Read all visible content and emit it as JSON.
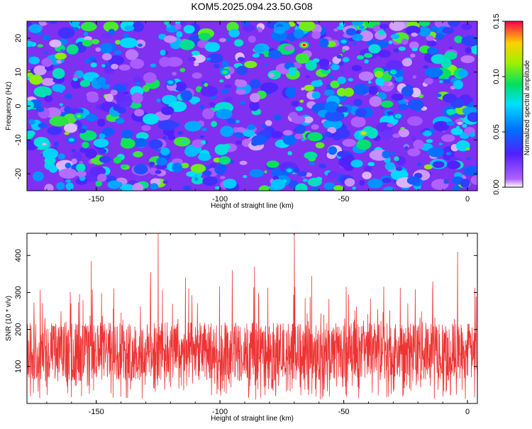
{
  "title": "KOM5.2025.094.23.50.G08",
  "chart_data": [
    {
      "type": "heatmap",
      "xlabel": "Height of straight line (km)",
      "ylabel": "Frequency (Hz)",
      "xlim": [
        -178,
        4
      ],
      "ylim": [
        -25,
        25
      ],
      "xticks": [
        -150,
        -100,
        -50,
        0
      ],
      "yticks": [
        -20,
        -10,
        0,
        10,
        20
      ],
      "colorbar": {
        "label": "Normalized spectral amplitude",
        "range": [
          0.0,
          0.15
        ],
        "ticks": [
          "0.00",
          "0.05",
          "0.10",
          "0.15"
        ]
      },
      "hotspots": [
        {
          "x": -66,
          "y": 18,
          "value": 0.15
        },
        {
          "x": -42,
          "y": -8,
          "value": 0.13
        },
        {
          "x": -157,
          "y": -3,
          "value": 0.11
        },
        {
          "x": -98,
          "y": 10,
          "value": 0.1
        },
        {
          "x": -30,
          "y": 10,
          "value": 0.09
        },
        {
          "x": -28,
          "y": -3,
          "value": 0.09
        },
        {
          "x": -160,
          "y": -10,
          "value": 0.08
        },
        {
          "x": -120,
          "y": 7,
          "value": 0.08
        },
        {
          "x": -72,
          "y": -19,
          "value": 0.08
        },
        {
          "x": -50,
          "y": 19,
          "value": 0.08
        }
      ]
    },
    {
      "type": "line",
      "xlabel": "Height of straight line (km)",
      "ylabel": "SNR (10 * v/v)",
      "xlim": [
        -178,
        4
      ],
      "ylim": [
        0,
        460
      ],
      "xticks": [
        -150,
        -100,
        -50,
        0
      ],
      "yticks": [
        100,
        200,
        300,
        400
      ],
      "series": [
        {
          "color": "#ee3333",
          "typical_range": [
            60,
            220
          ],
          "spikes": [
            {
              "x": -125,
              "y": 460
            },
            {
              "x": -70,
              "y": 460
            },
            {
              "x": -4,
              "y": 410
            },
            {
              "x": -152,
              "y": 385
            },
            {
              "x": -86,
              "y": 370
            },
            {
              "x": -95,
              "y": 360
            },
            {
              "x": -128,
              "y": 355
            },
            {
              "x": -63,
              "y": 345
            },
            {
              "x": -114,
              "y": 340
            },
            {
              "x": -14,
              "y": 330
            }
          ]
        }
      ]
    }
  ]
}
